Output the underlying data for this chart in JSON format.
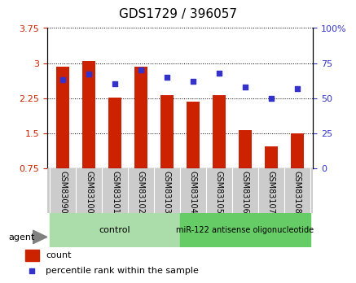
{
  "title": "GDS1729 / 396057",
  "samples": [
    "GSM83090",
    "GSM83100",
    "GSM83101",
    "GSM83102",
    "GSM83103",
    "GSM83104",
    "GSM83105",
    "GSM83106",
    "GSM83107",
    "GSM83108"
  ],
  "counts": [
    2.93,
    3.04,
    2.27,
    2.92,
    2.31,
    2.17,
    2.31,
    1.57,
    1.22,
    1.49
  ],
  "percentile_ranks": [
    63,
    67,
    60,
    70,
    65,
    62,
    68,
    58,
    50,
    57
  ],
  "bar_bottom": 0.75,
  "ylim_left": [
    0.75,
    3.75
  ],
  "ylim_right": [
    0,
    100
  ],
  "yticks_left": [
    0.75,
    1.5,
    2.25,
    3.0,
    3.75
  ],
  "ytick_labels_left": [
    "0.75",
    "1.5",
    "2.25",
    "3",
    "3.75"
  ],
  "yticks_right": [
    0,
    25,
    50,
    75,
    100
  ],
  "ytick_labels_right": [
    "0",
    "25",
    "50",
    "75",
    "100%"
  ],
  "bar_color": "#cc2200",
  "dot_color": "#3333cc",
  "grid_color": "#000000",
  "bg_plot": "#ffffff",
  "bg_xlabel": "#cccccc",
  "bg_control": "#99ee99",
  "bg_treatment": "#66cc66",
  "control_label": "control",
  "treatment_label": "miR-122 antisense oligonucleotide",
  "control_count": 5,
  "treatment_count": 5,
  "agent_label": "agent",
  "legend_count_label": "count",
  "legend_pct_label": "percentile rank within the sample",
  "bar_width": 0.5
}
